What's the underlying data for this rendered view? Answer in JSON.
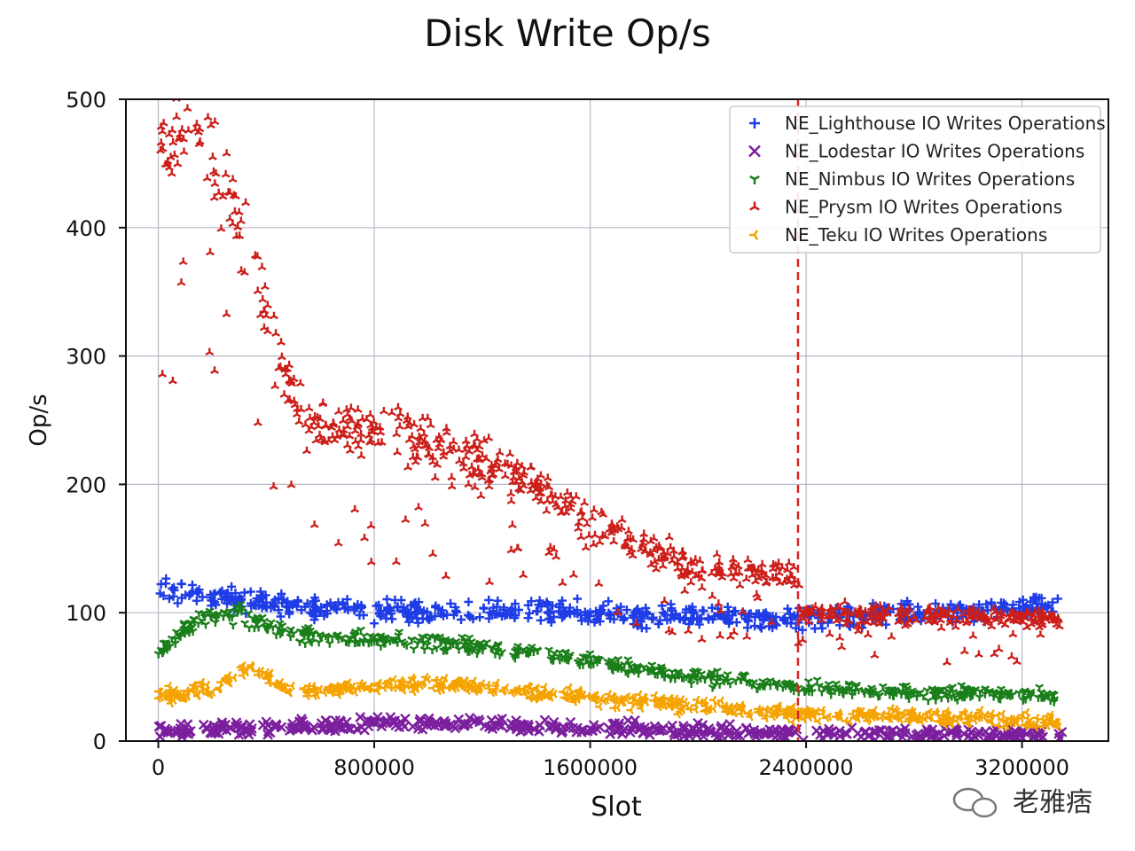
{
  "chart_data": {
    "type": "scatter",
    "title": "Disk Write Op/s",
    "xlabel": "Slot",
    "ylabel": "Op/s",
    "xlim": [
      -120000,
      3520000
    ],
    "ylim": [
      0,
      500
    ],
    "xticks": [
      0,
      800000,
      1600000,
      2400000,
      3200000
    ],
    "xtick_labels": [
      "0",
      "800000",
      "1600000",
      "2400000",
      "3200000"
    ],
    "yticks": [
      0,
      100,
      200,
      300,
      400,
      500
    ],
    "ytick_labels": [
      "0",
      "100",
      "200",
      "300",
      "400",
      "500"
    ],
    "grid": true,
    "legend_position": "top-right",
    "vline": {
      "x": 2370000,
      "color": "#d62728",
      "style": "dashed"
    },
    "series": [
      {
        "name": "NE_Lighthouse IO Writes Operations",
        "color": "#1f3de6",
        "marker": "plus",
        "trend": [
          [
            0,
            120
          ],
          [
            200000,
            112
          ],
          [
            600000,
            103
          ],
          [
            1000000,
            100
          ],
          [
            1400000,
            102
          ],
          [
            1800000,
            98
          ],
          [
            2370000,
            95
          ],
          [
            2800000,
            100
          ],
          [
            3350000,
            105
          ]
        ]
      },
      {
        "name": "NE_Lodestar IO Writes Operations",
        "color": "#7b1f9e",
        "marker": "x",
        "trend": [
          [
            0,
            8
          ],
          [
            600000,
            12
          ],
          [
            1000000,
            14
          ],
          [
            1600000,
            10
          ],
          [
            2370000,
            6
          ],
          [
            3350000,
            5
          ]
        ]
      },
      {
        "name": "NE_Nimbus IO Writes Operations",
        "color": "#1a7f1a",
        "marker": "tri_down",
        "trend": [
          [
            0,
            70
          ],
          [
            150000,
            95
          ],
          [
            300000,
            100
          ],
          [
            500000,
            82
          ],
          [
            1000000,
            78
          ],
          [
            1600000,
            62
          ],
          [
            2000000,
            50
          ],
          [
            2370000,
            42
          ],
          [
            3350000,
            35
          ]
        ]
      },
      {
        "name": "NE_Prysm IO Writes Operations",
        "color": "#cc1f1a",
        "marker": "tri_up",
        "trend": [
          [
            0,
            470
          ],
          [
            150000,
            480
          ],
          [
            300000,
            400
          ],
          [
            450000,
            300
          ],
          [
            550000,
            250
          ],
          [
            800000,
            240
          ],
          [
            1100000,
            230
          ],
          [
            1350000,
            205
          ],
          [
            1600000,
            170
          ],
          [
            1800000,
            150
          ],
          [
            2000000,
            135
          ],
          [
            2370000,
            130
          ],
          [
            2380000,
            100
          ],
          [
            3350000,
            95
          ]
        ]
      },
      {
        "name": "NE_Teku IO Writes Operations",
        "color": "#f5a300",
        "marker": "tri_left",
        "trend": [
          [
            0,
            35
          ],
          [
            200000,
            40
          ],
          [
            330000,
            58
          ],
          [
            500000,
            38
          ],
          [
            1000000,
            45
          ],
          [
            1400000,
            38
          ],
          [
            1800000,
            30
          ],
          [
            2370000,
            22
          ],
          [
            3350000,
            15
          ]
        ]
      }
    ]
  },
  "watermark": {
    "text": "老雅痞"
  }
}
